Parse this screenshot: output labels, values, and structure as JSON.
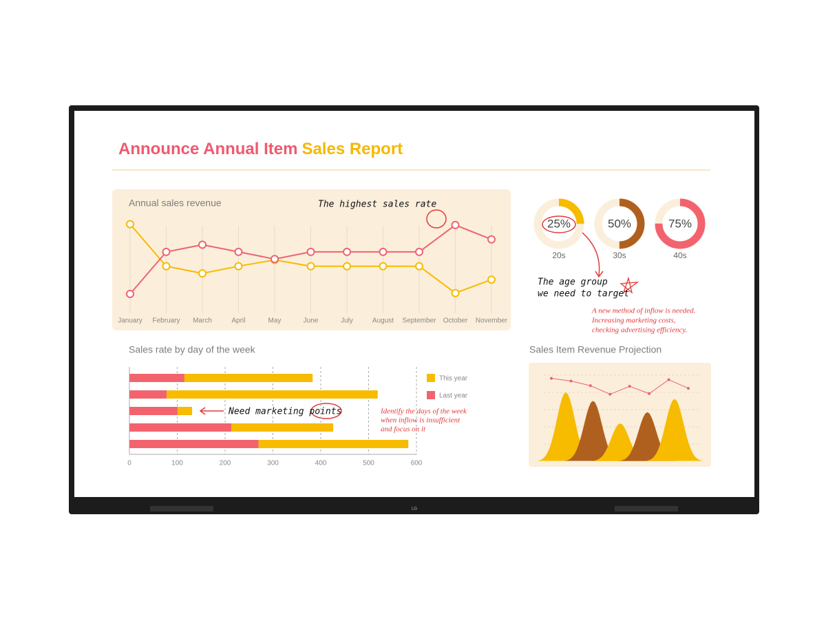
{
  "header": {
    "title_main": "Announce Annual Item",
    "title_accent": "Sales Report"
  },
  "brand": "LG",
  "chart_data": [
    {
      "type": "line",
      "title": "Annual sales revenue",
      "categories": [
        "January",
        "February",
        "March",
        "April",
        "May",
        "June",
        "July",
        "August",
        "September",
        "October",
        "November"
      ],
      "series": [
        {
          "color": "#f7bb00",
          "values": [
            88,
            41,
            33,
            41,
            48,
            41,
            41,
            41,
            41,
            11,
            26
          ]
        },
        {
          "color": "#ee6470",
          "values": [
            10,
            57,
            65,
            57,
            49,
            57,
            57,
            57,
            57,
            87,
            71
          ]
        }
      ],
      "ylim": [
        0,
        100
      ],
      "grid": true,
      "annotation": "The highest sales rate"
    },
    {
      "type": "donut",
      "categories": [
        "20s",
        "30s",
        "40s"
      ],
      "values": [
        25,
        50,
        75
      ],
      "value_labels": [
        "25%",
        "50%",
        "75%"
      ],
      "colors": [
        "#f7bb00",
        "#b0601e",
        "#f2636e"
      ],
      "annotation": [
        "The age group",
        "we need to target"
      ],
      "note": [
        "A new method of inflow is needed.",
        "Increasing marketing costs,",
        "checking advertising efficiency."
      ]
    },
    {
      "type": "bar",
      "orientation": "horizontal",
      "stacked": true,
      "title": "Sales rate by day of the week",
      "categories": [
        null,
        null,
        null,
        null,
        null
      ],
      "series": [
        {
          "name": "Last year",
          "color": "#f2636e",
          "values": [
            115,
            78,
            101,
            213,
            270
          ]
        },
        {
          "name": "This year",
          "color": "#f7bb00",
          "values": [
            268,
            441,
            30,
            213,
            313
          ]
        }
      ],
      "xlim": [
        0,
        600
      ],
      "xticks": [
        0,
        100,
        200,
        300,
        400,
        500,
        600
      ],
      "grid": true,
      "annotation": "Need marketing points",
      "note": [
        "Identify the days of the week",
        "when inflow is insufficient",
        "and focus on it"
      ]
    },
    {
      "type": "area",
      "title": "Sales Item Revenue Projection",
      "peaks": {
        "values": [
          104,
          91,
          57,
          74,
          94
        ],
        "colors": [
          "#f7bb00",
          "#b0601e",
          "#f7bb00",
          "#b0601e",
          "#f7bb00"
        ]
      },
      "line": {
        "color": "#e8646f",
        "values": [
          125,
          121,
          114,
          101,
          113,
          102,
          123,
          110
        ]
      },
      "ylim": [
        0,
        135
      ]
    }
  ]
}
